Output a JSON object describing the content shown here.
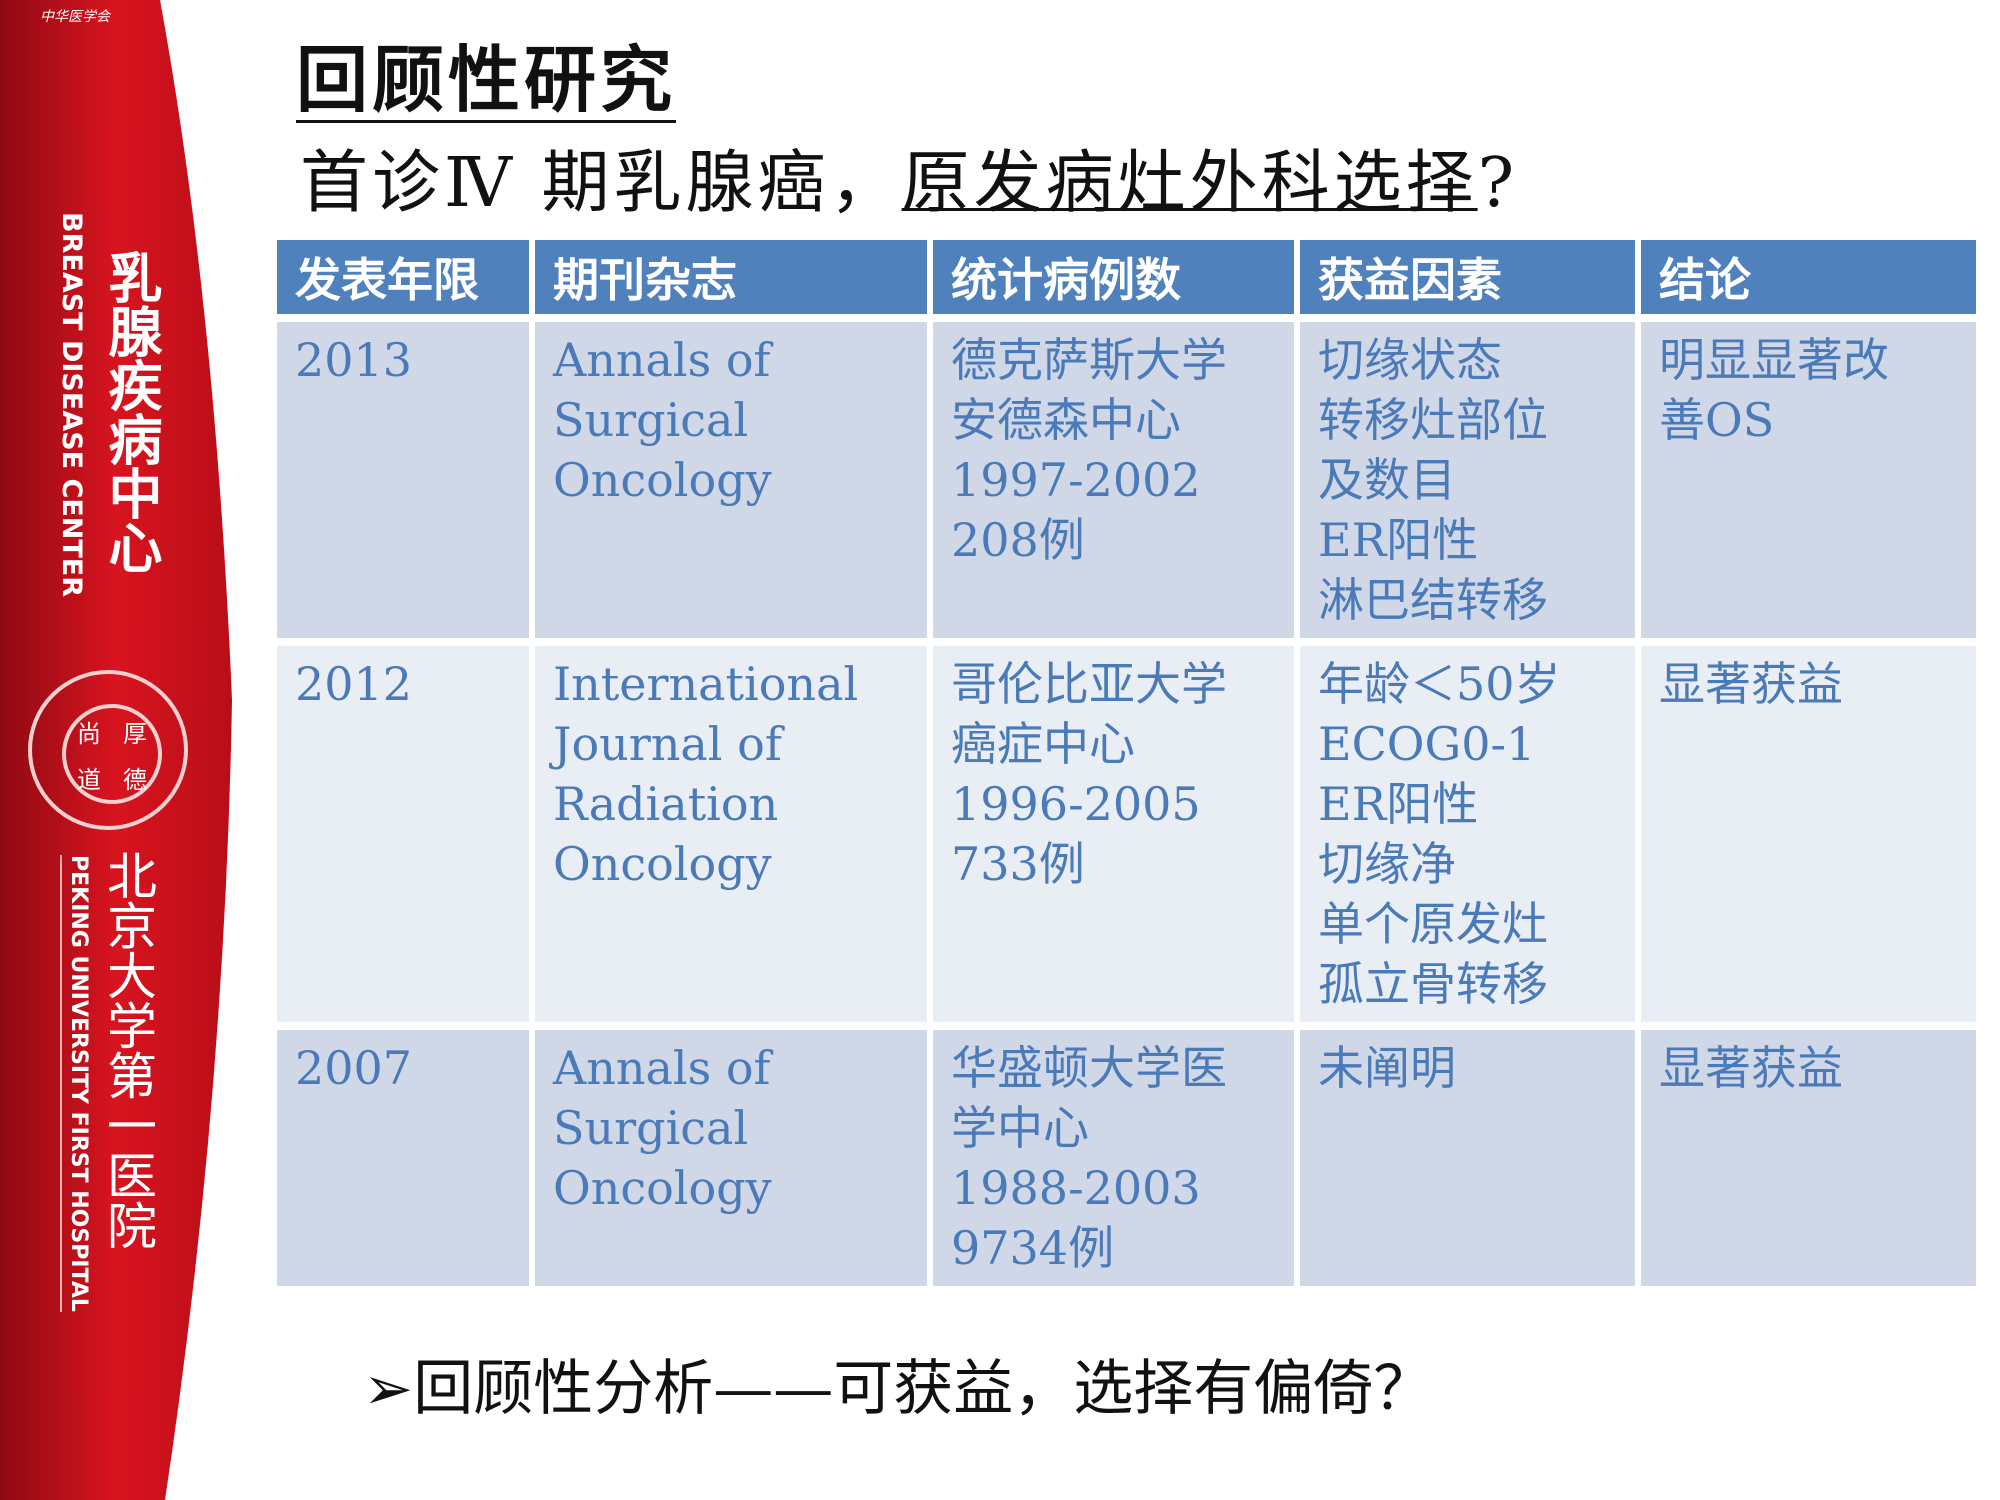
{
  "banner": {
    "org_name": "中华医学会",
    "center_cn": "乳腺疾病中心",
    "center_en": "BREAST DISEASE CENTER",
    "seal_chars": [
      "尚",
      "厚",
      "道",
      "德"
    ],
    "hospital_cn": "北京大学第一医院",
    "hospital_en": "PEKING UNIVERSITY FIRST HOSPITAL",
    "color": "#c8101e"
  },
  "title": "回顾性研究",
  "subtitle": {
    "prefix": "首诊Ⅳ 期乳腺癌，",
    "underlined": "原发病灶外科选择",
    "suffix": "?"
  },
  "table": {
    "headers": [
      "发表年限",
      "期刊杂志",
      "统计病例数",
      "获益因素",
      "结论"
    ],
    "rows": [
      {
        "year": "2013",
        "journal": [
          "Annals of",
          "Surgical",
          "Oncology"
        ],
        "cases": [
          "德克萨斯大学",
          "安德森中心",
          "1997-2002",
          "208例"
        ],
        "factors": [
          "切缘状态",
          "转移灶部位",
          "及数目",
          "ER阳性",
          "淋巴结转移"
        ],
        "conclusion": [
          "明显显著改",
          "善OS"
        ]
      },
      {
        "year": "2012",
        "journal": [
          "International",
          "Journal of",
          "Radiation",
          "Oncology"
        ],
        "cases": [
          "哥伦比亚大学",
          "癌症中心",
          "1996-2005",
          "733例"
        ],
        "factors": [
          "年龄＜50岁",
          "ECOG0-1",
          "ER阳性",
          "切缘净",
          "单个原发灶",
          "孤立骨转移"
        ],
        "conclusion": [
          "显著获益"
        ]
      },
      {
        "year": "2007",
        "journal": [
          "Annals of",
          "Surgical",
          "Oncology"
        ],
        "cases": [
          "华盛顿大学医",
          "学中心",
          "1988-2003",
          "9734例"
        ],
        "factors": [
          "未阐明"
        ],
        "conclusion": [
          "显著获益"
        ]
      }
    ],
    "header_color": "#4f81bd",
    "text_color": "#4a7ab8"
  },
  "bottom_bullet": "➢",
  "bottom_text": "回顾性分析——可获益，选择有偏倚？"
}
